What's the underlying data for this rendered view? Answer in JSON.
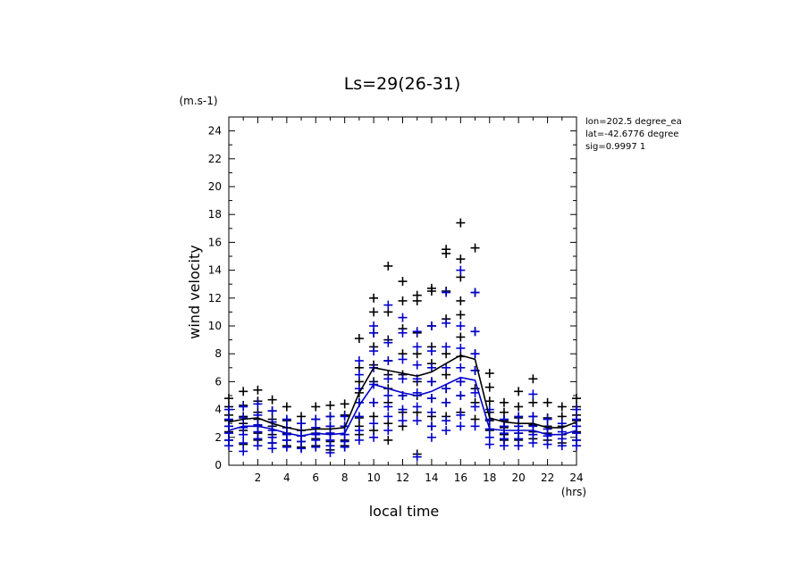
{
  "chart_data": {
    "type": "scatter",
    "title": "Ls=29(26-31)",
    "xlabel": "local time",
    "ylabel": "wind velocity",
    "x_unit": "(hrs)",
    "y_unit": "(m.s-1)",
    "xlim": [
      0,
      24
    ],
    "ylim": [
      0,
      25
    ],
    "x_ticks": [
      "2",
      "4",
      "6",
      "8",
      "10",
      "12",
      "14",
      "16",
      "18",
      "20",
      "22",
      "24"
    ],
    "y_ticks": [
      "0",
      "2",
      "4",
      "6",
      "8",
      "10",
      "12",
      "14",
      "16",
      "18",
      "20",
      "22",
      "24"
    ],
    "annotation": [
      "lon=202.5 degree_ea",
      "lat=-42.6776 degree",
      "sig=0.9997 1"
    ],
    "grid": false,
    "colors": {
      "black_series": "#000000",
      "blue_series": "#0000cc"
    },
    "series": [
      {
        "color": "black",
        "x": [
          0,
          0,
          0,
          0,
          0,
          0,
          0,
          1,
          1,
          1,
          1,
          1,
          1,
          2,
          2,
          2,
          2,
          2,
          2,
          2,
          3,
          3,
          3,
          3,
          3,
          3,
          4,
          4,
          4,
          4,
          4,
          4,
          5,
          5,
          5,
          5,
          5,
          5,
          6,
          6,
          6,
          6,
          6,
          6,
          7,
          7,
          7,
          7,
          7,
          7,
          8,
          8,
          8,
          8,
          8,
          8,
          9,
          9,
          9,
          9,
          9,
          9,
          9,
          9,
          10,
          10,
          10,
          10,
          10,
          10,
          10,
          10,
          10,
          11,
          11,
          11,
          11,
          11,
          11,
          11,
          11,
          11,
          12,
          12,
          12,
          12,
          12,
          12,
          12,
          12,
          13,
          13,
          13,
          13,
          13,
          13,
          13,
          13,
          14,
          14,
          14,
          14,
          14,
          14,
          14,
          14,
          14,
          15,
          15,
          15,
          15,
          15,
          15,
          15,
          15,
          15,
          16,
          16,
          16,
          16,
          16,
          16,
          16,
          16,
          16,
          16,
          17,
          17,
          17,
          17,
          17,
          17,
          17,
          17,
          18,
          18,
          18,
          18,
          18,
          18,
          19,
          19,
          19,
          19,
          19,
          19,
          20,
          20,
          20,
          20,
          20,
          20,
          21,
          21,
          21,
          21,
          21,
          21,
          22,
          22,
          22,
          22,
          22,
          23,
          23,
          23,
          23,
          23,
          24,
          24,
          24,
          24,
          24,
          24,
          24
        ],
        "y": [
          4.8,
          4.2,
          3.6,
          3.2,
          2.8,
          2.4,
          1.8,
          5.3,
          4.3,
          3.5,
          3.0,
          2.5,
          1.5,
          5.4,
          4.6,
          3.8,
          3.3,
          2.8,
          2.3,
          1.8,
          4.7,
          3.9,
          3.3,
          2.8,
          2.2,
          1.6,
          4.2,
          3.2,
          2.7,
          2.3,
          1.8,
          1.4,
          3.5,
          3.0,
          2.5,
          2.1,
          1.7,
          1.3,
          4.2,
          3.3,
          2.7,
          2.3,
          1.9,
          1.4,
          4.3,
          3.5,
          2.8,
          2.3,
          1.7,
          1.1,
          4.4,
          3.6,
          2.8,
          2.2,
          1.8,
          1.4,
          9.1,
          7.0,
          6.0,
          5.2,
          4.5,
          3.4,
          2.8,
          2.2,
          12.0,
          11.0,
          9.5,
          8.5,
          7.2,
          6.0,
          4.5,
          3.5,
          2.5,
          14.3,
          11.0,
          9.0,
          7.5,
          6.5,
          5.5,
          4.5,
          3.0,
          1.8,
          13.2,
          11.8,
          9.8,
          8.0,
          6.5,
          5.0,
          3.8,
          2.8,
          12.2,
          11.8,
          9.5,
          8.0,
          6.0,
          5.0,
          3.8,
          0.8,
          12.7,
          12.5,
          10.0,
          8.5,
          7.3,
          6.0,
          4.8,
          3.5,
          2.8,
          15.5,
          15.2,
          12.5,
          10.5,
          8.0,
          6.5,
          5.5,
          4.5,
          3.5,
          17.4,
          14.8,
          13.5,
          11.8,
          10.8,
          9.2,
          7.8,
          6.0,
          5.0,
          3.8,
          15.6,
          12.4,
          9.6,
          8.0,
          6.8,
          5.5,
          4.5,
          3.3,
          6.6,
          5.6,
          4.6,
          3.8,
          3.2,
          2.5,
          4.5,
          3.8,
          3.2,
          2.7,
          2.2,
          1.8,
          5.3,
          4.2,
          3.4,
          2.8,
          2.3,
          1.8,
          6.2,
          4.5,
          3.5,
          2.9,
          2.4,
          1.9,
          4.5,
          3.4,
          2.8,
          2.3,
          1.8,
          4.2,
          3.5,
          2.8,
          2.2,
          1.6,
          4.8,
          4.2,
          3.6,
          3.2,
          2.8,
          2.4,
          1.8
        ]
      },
      {
        "color": "blue",
        "x": [
          0,
          0,
          0,
          0,
          0,
          0,
          1,
          1,
          1,
          1,
          1,
          1,
          2,
          2,
          2,
          2,
          2,
          2,
          3,
          3,
          3,
          3,
          3,
          3,
          4,
          4,
          4,
          4,
          4,
          5,
          5,
          5,
          5,
          5,
          6,
          6,
          6,
          6,
          6,
          7,
          7,
          7,
          7,
          7,
          7,
          8,
          8,
          8,
          8,
          8,
          9,
          9,
          9,
          9,
          9,
          9,
          9,
          10,
          10,
          10,
          10,
          10,
          10,
          10,
          10,
          11,
          11,
          11,
          11,
          11,
          11,
          11,
          11,
          12,
          12,
          12,
          12,
          12,
          12,
          12,
          13,
          13,
          13,
          13,
          13,
          13,
          13,
          13,
          14,
          14,
          14,
          14,
          14,
          14,
          14,
          14,
          15,
          15,
          15,
          15,
          15,
          15,
          15,
          15,
          16,
          16,
          16,
          16,
          16,
          16,
          16,
          16,
          17,
          17,
          17,
          17,
          17,
          17,
          17,
          18,
          18,
          18,
          18,
          18,
          19,
          19,
          19,
          19,
          19,
          20,
          20,
          20,
          20,
          20,
          21,
          21,
          21,
          21,
          21,
          22,
          22,
          22,
          22,
          23,
          23,
          23,
          23,
          24,
          24,
          24,
          24,
          24,
          24
        ],
        "y": [
          4.0,
          3.3,
          2.8,
          2.3,
          1.8,
          1.4,
          4.2,
          3.4,
          2.7,
          2.2,
          1.6,
          1.0,
          4.4,
          3.6,
          2.9,
          2.4,
          1.9,
          1.4,
          3.9,
          3.1,
          2.5,
          2.0,
          1.6,
          1.2,
          3.3,
          2.7,
          2.2,
          1.8,
          1.3,
          3.0,
          2.5,
          2.1,
          1.7,
          1.2,
          3.3,
          2.7,
          2.2,
          1.8,
          1.3,
          3.5,
          2.8,
          2.3,
          1.8,
          1.4,
          0.9,
          3.5,
          2.8,
          2.2,
          1.7,
          1.3,
          7.5,
          6.5,
          5.5,
          4.5,
          3.5,
          2.5,
          1.8,
          10.0,
          9.5,
          8.2,
          7.0,
          5.8,
          4.5,
          3.0,
          2.0,
          11.5,
          8.8,
          7.5,
          6.2,
          5.0,
          4.2,
          3.5,
          2.5,
          10.6,
          9.5,
          7.6,
          6.2,
          5.0,
          4.0,
          3.2,
          9.6,
          8.5,
          7.2,
          6.2,
          5.2,
          4.2,
          3.2,
          0.6,
          10.0,
          8.2,
          7.0,
          6.0,
          4.8,
          3.8,
          2.8,
          2.0,
          12.4,
          10.2,
          8.5,
          7.0,
          5.5,
          4.5,
          3.2,
          2.5,
          14.0,
          10.0,
          8.4,
          7.0,
          6.0,
          5.0,
          3.6,
          2.8,
          12.4,
          9.6,
          8.0,
          6.8,
          5.2,
          4.2,
          2.8,
          4.0,
          3.3,
          2.6,
          2.0,
          1.5,
          3.3,
          2.8,
          2.3,
          1.9,
          1.4,
          3.5,
          2.8,
          2.3,
          1.9,
          1.4,
          5.1,
          3.5,
          2.8,
          2.2,
          1.6,
          3.3,
          2.6,
          2.1,
          1.5,
          3.0,
          2.4,
          1.9,
          1.4,
          4.0,
          3.3,
          2.8,
          2.3,
          1.8,
          1.4
        ]
      },
      {
        "color": "black",
        "style": "line",
        "x": [
          0,
          1,
          2,
          3,
          4,
          5,
          6,
          7,
          8,
          9,
          10,
          11,
          12,
          13,
          14,
          15,
          16,
          17,
          18,
          19,
          20,
          21,
          22,
          23,
          24
        ],
        "y": [
          3.1,
          3.3,
          3.4,
          3.0,
          2.7,
          2.5,
          2.6,
          2.6,
          2.7,
          5.2,
          7.0,
          6.8,
          6.6,
          6.4,
          6.7,
          7.3,
          7.9,
          7.6,
          3.4,
          3.1,
          3.0,
          3.0,
          2.7,
          2.7,
          3.1
        ]
      },
      {
        "color": "blue",
        "style": "line",
        "x": [
          0,
          1,
          2,
          3,
          4,
          5,
          6,
          7,
          8,
          9,
          10,
          11,
          12,
          13,
          14,
          15,
          16,
          17,
          18,
          19,
          20,
          21,
          22,
          23,
          24
        ],
        "y": [
          2.5,
          2.8,
          2.8,
          2.6,
          2.3,
          2.1,
          2.3,
          2.2,
          2.3,
          4.3,
          5.8,
          5.5,
          5.2,
          5.0,
          5.3,
          5.8,
          6.3,
          6.1,
          2.6,
          2.5,
          2.5,
          2.5,
          2.2,
          2.2,
          2.5
        ]
      }
    ]
  }
}
